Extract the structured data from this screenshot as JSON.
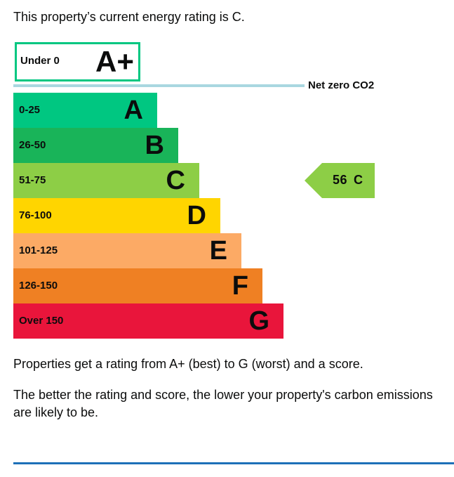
{
  "intro": "This property’s current energy rating is C.",
  "chart_data": {
    "type": "bar",
    "categories": [
      "A+",
      "A",
      "B",
      "C",
      "D",
      "E",
      "F",
      "G"
    ],
    "ranges": [
      "Under 0",
      "0-25",
      "26-50",
      "51-75",
      "76-100",
      "101-125",
      "126-150",
      "Over 150"
    ],
    "colors": [
      "#00c781",
      "#00c781",
      "#19b459",
      "#8dce46",
      "#ffd500",
      "#fcaa65",
      "#ef8023",
      "#e9153b"
    ],
    "net_zero_label": "Net zero CO2",
    "current": {
      "score": 56,
      "score_label": "56",
      "letter": "C",
      "color": "#8dce46"
    }
  },
  "descriptions": [
    "Properties get a rating from A+ (best) to G (worst) and a score.",
    "The better the rating and score, the lower your property's carbon emissions are likely to be."
  ]
}
